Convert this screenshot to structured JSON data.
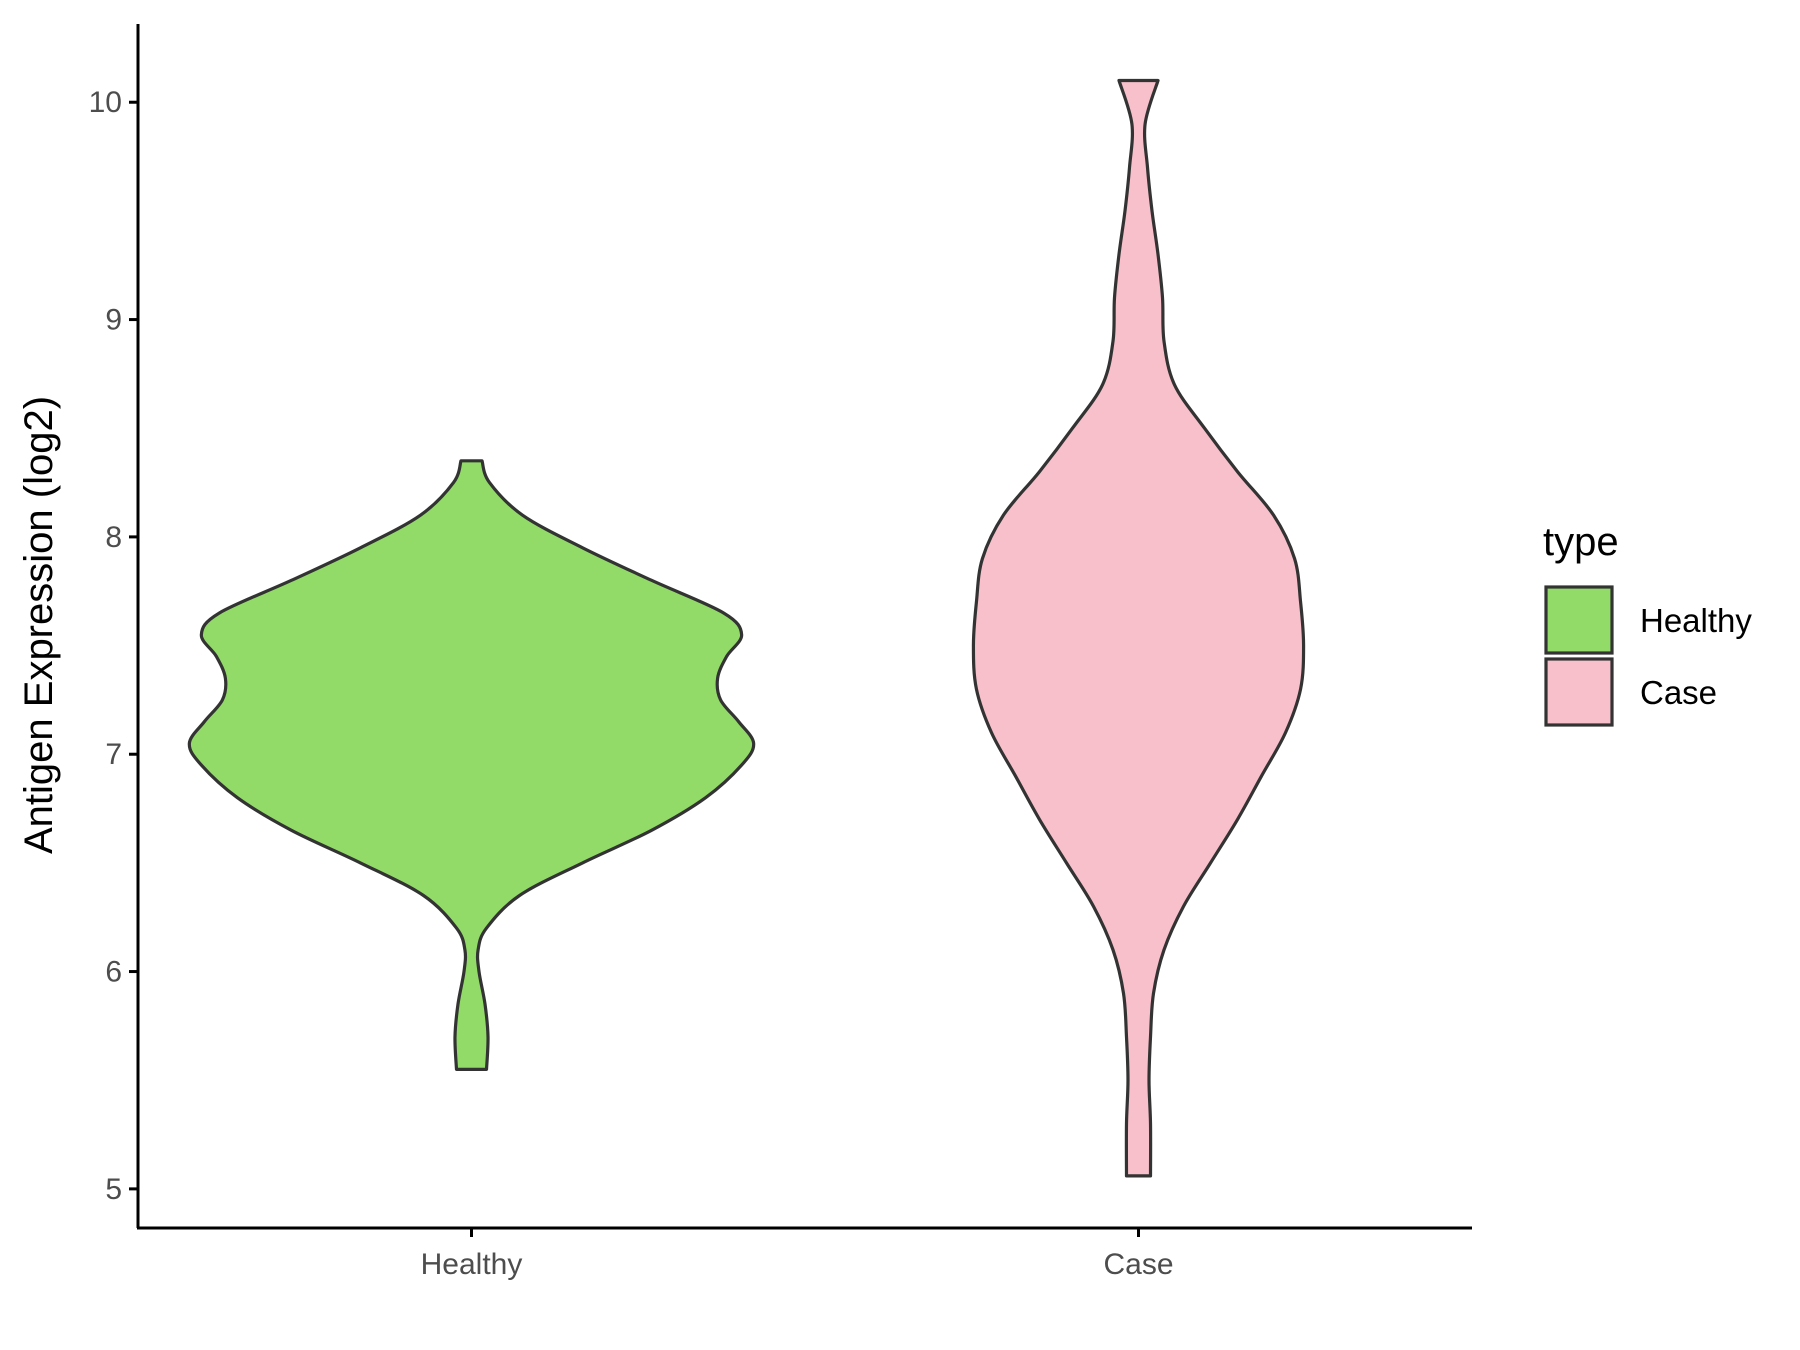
{
  "chart_data": {
    "type": "violin",
    "title": "",
    "xlabel": "",
    "ylabel": "Antigen Expression (log2)",
    "categories": [
      "Healthy",
      "Case"
    ],
    "yticks": [
      5,
      6,
      7,
      8,
      9,
      10
    ],
    "ylim": [
      4.82,
      10.36
    ],
    "grid": false,
    "legend": {
      "title": "type",
      "position": "right",
      "entries": [
        {
          "label": "Healthy",
          "color": "#93db69"
        },
        {
          "label": "Case",
          "color": "#f8c0cb"
        }
      ]
    },
    "series": [
      {
        "category": "Healthy",
        "color": "#93db69",
        "min": 5.55,
        "max": 8.35,
        "profile": [
          [
            5.55,
            0.05
          ],
          [
            5.7,
            0.055
          ],
          [
            5.85,
            0.045
          ],
          [
            6.0,
            0.025
          ],
          [
            6.1,
            0.022
          ],
          [
            6.2,
            0.05
          ],
          [
            6.35,
            0.16
          ],
          [
            6.5,
            0.37
          ],
          [
            6.65,
            0.6
          ],
          [
            6.8,
            0.78
          ],
          [
            6.95,
            0.9
          ],
          [
            7.05,
            0.94
          ],
          [
            7.15,
            0.89
          ],
          [
            7.25,
            0.83
          ],
          [
            7.35,
            0.82
          ],
          [
            7.45,
            0.85
          ],
          [
            7.55,
            0.9
          ],
          [
            7.65,
            0.84
          ],
          [
            7.8,
            0.6
          ],
          [
            7.95,
            0.37
          ],
          [
            8.1,
            0.17
          ],
          [
            8.25,
            0.06
          ],
          [
            8.35,
            0.035
          ]
        ]
      },
      {
        "category": "Case",
        "color": "#f8c0cb",
        "min": 5.06,
        "max": 10.1,
        "profile": [
          [
            5.06,
            0.04
          ],
          [
            5.3,
            0.04
          ],
          [
            5.5,
            0.035
          ],
          [
            5.7,
            0.04
          ],
          [
            5.9,
            0.05
          ],
          [
            6.1,
            0.085
          ],
          [
            6.3,
            0.15
          ],
          [
            6.5,
            0.24
          ],
          [
            6.7,
            0.33
          ],
          [
            6.9,
            0.41
          ],
          [
            7.1,
            0.49
          ],
          [
            7.3,
            0.54
          ],
          [
            7.5,
            0.55
          ],
          [
            7.7,
            0.54
          ],
          [
            7.9,
            0.52
          ],
          [
            8.1,
            0.45
          ],
          [
            8.3,
            0.33
          ],
          [
            8.5,
            0.22
          ],
          [
            8.7,
            0.12
          ],
          [
            8.9,
            0.085
          ],
          [
            9.1,
            0.08
          ],
          [
            9.3,
            0.065
          ],
          [
            9.5,
            0.045
          ],
          [
            9.7,
            0.03
          ],
          [
            9.9,
            0.022
          ],
          [
            10.1,
            0.065
          ]
        ]
      }
    ]
  }
}
